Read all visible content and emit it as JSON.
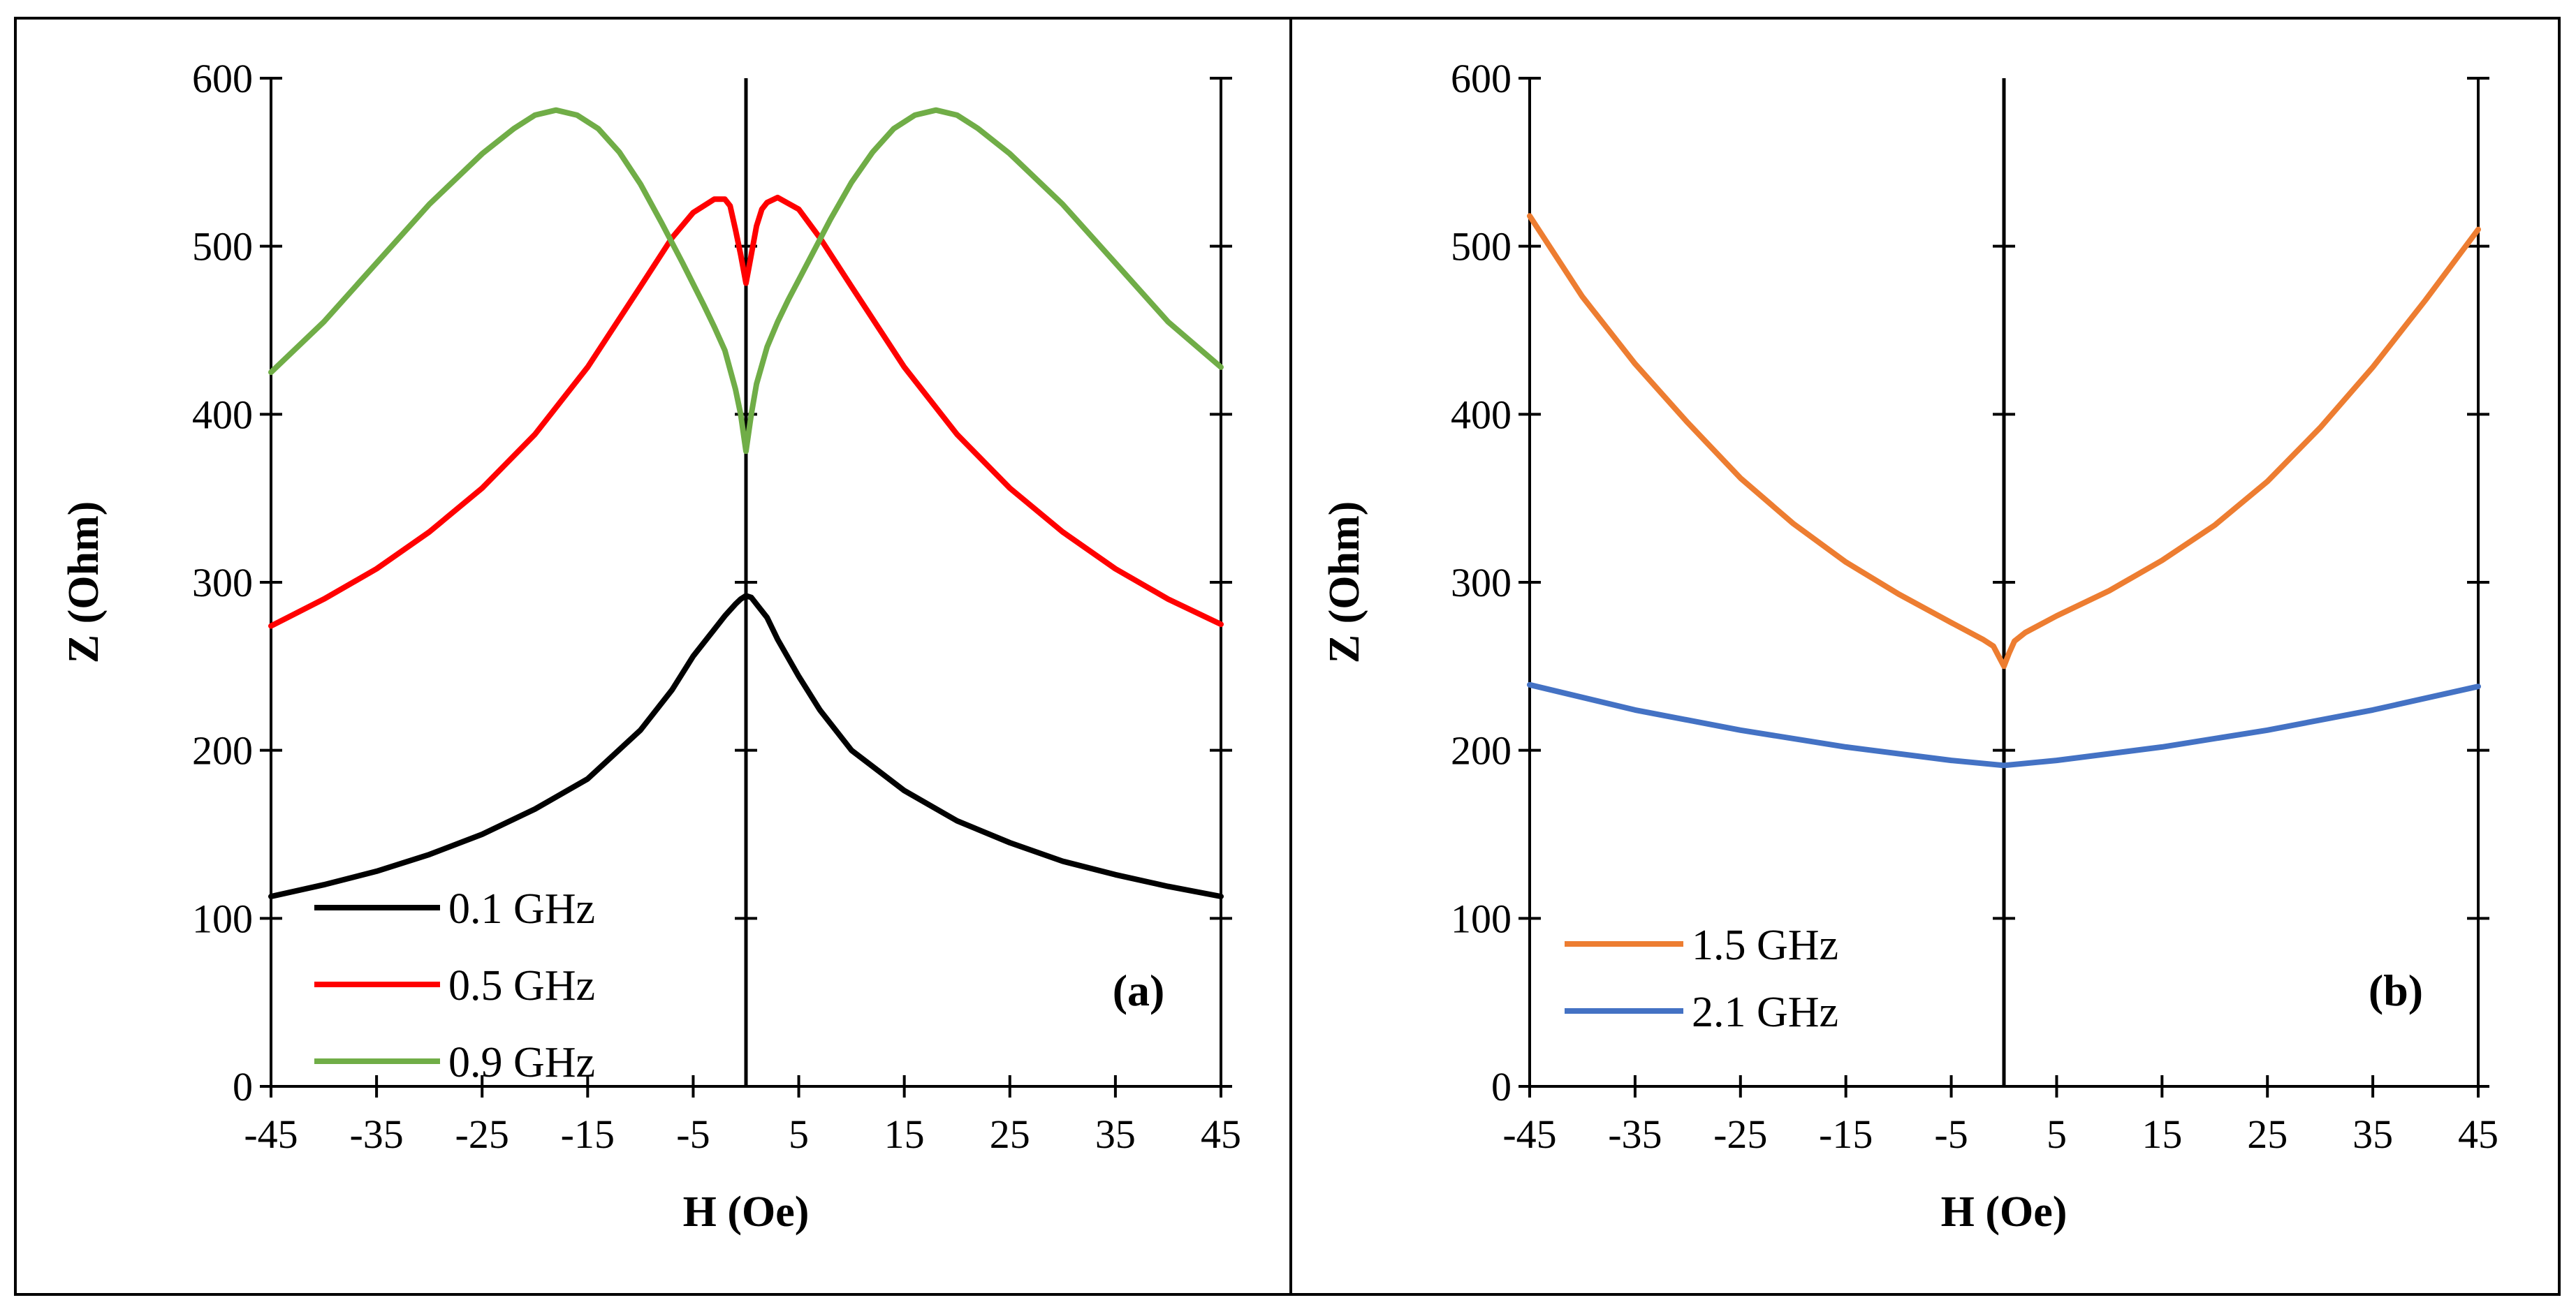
{
  "chart_data": [
    {
      "type": "line",
      "panel_label": "(a)",
      "xlabel": "H (Oe)",
      "ylabel": "Z (Ohm)",
      "xlim": [
        -45,
        45
      ],
      "ylim": [
        0,
        600
      ],
      "xticks": [
        "-45",
        "-35",
        "-25",
        "-15",
        "-5",
        "5",
        "15",
        "25",
        "35",
        "45"
      ],
      "yticks": [
        "0",
        "100",
        "200",
        "300",
        "400",
        "500",
        "600"
      ],
      "legend_position": "bottom-left",
      "series": [
        {
          "name": "0.1 GHz",
          "color": "#000000",
          "x": [
            -45,
            -40,
            -35,
            -30,
            -25,
            -20,
            -15,
            -10,
            -7,
            -5,
            -3,
            -2,
            -1,
            -0.5,
            0,
            0.5,
            1,
            2,
            3,
            5,
            7,
            10,
            15,
            20,
            25,
            30,
            35,
            40,
            45
          ],
          "y": [
            113,
            120,
            128,
            138,
            150,
            165,
            183,
            212,
            236,
            256,
            272,
            280,
            287,
            290,
            292,
            291,
            287,
            279,
            266,
            244,
            224,
            200,
            176,
            158,
            145,
            134,
            126,
            119,
            113
          ]
        },
        {
          "name": "0.5 GHz",
          "color": "#ff0000",
          "x": [
            -45,
            -40,
            -35,
            -30,
            -25,
            -20,
            -15,
            -10,
            -7,
            -5,
            -3,
            -2,
            -1.5,
            -1,
            -0.5,
            0,
            0.5,
            1,
            1.5,
            2,
            3,
            5,
            7,
            10,
            15,
            20,
            25,
            30,
            35,
            40,
            45
          ],
          "y": [
            274,
            290,
            308,
            330,
            356,
            388,
            428,
            476,
            505,
            520,
            528,
            528,
            524,
            510,
            495,
            478,
            495,
            512,
            522,
            526,
            529,
            522,
            505,
            476,
            428,
            388,
            356,
            330,
            308,
            290,
            275
          ]
        },
        {
          "name": "0.9 GHz",
          "color": "#70ad47",
          "x": [
            -45,
            -40,
            -35,
            -30,
            -25,
            -22,
            -20,
            -18,
            -16,
            -14,
            -12,
            -10,
            -8,
            -6,
            -4,
            -3,
            -2,
            -1,
            -0.5,
            0,
            0.5,
            1,
            2,
            3,
            4,
            6,
            8,
            10,
            12,
            14,
            16,
            18,
            20,
            22,
            25,
            30,
            35,
            40,
            45
          ],
          "y": [
            425,
            455,
            490,
            525,
            555,
            570,
            578,
            581,
            578,
            570,
            556,
            537,
            514,
            490,
            465,
            452,
            438,
            415,
            400,
            378,
            400,
            418,
            440,
            455,
            468,
            492,
            516,
            538,
            556,
            570,
            578,
            581,
            578,
            570,
            555,
            525,
            490,
            455,
            428
          ]
        }
      ]
    },
    {
      "type": "line",
      "panel_label": "(b)",
      "xlabel": "H (Oe)",
      "ylabel": "Z (Ohm)",
      "xlim": [
        -45,
        45
      ],
      "ylim": [
        0,
        600
      ],
      "xticks": [
        "-45",
        "-35",
        "-25",
        "-15",
        "-5",
        "5",
        "15",
        "25",
        "35",
        "45"
      ],
      "yticks": [
        "0",
        "100",
        "200",
        "300",
        "400",
        "500",
        "600"
      ],
      "legend_position": "bottom-left",
      "series": [
        {
          "name": "1.5 GHz",
          "color": "#ed7d31",
          "x": [
            -45,
            -40,
            -35,
            -30,
            -25,
            -20,
            -15,
            -10,
            -5,
            -2,
            -1,
            0,
            0.5,
            1,
            2,
            5,
            10,
            15,
            20,
            25,
            30,
            35,
            40,
            45
          ],
          "y": [
            518,
            470,
            430,
            395,
            362,
            335,
            312,
            293,
            276,
            266,
            262,
            250,
            258,
            265,
            270,
            280,
            295,
            313,
            334,
            360,
            392,
            428,
            468,
            510
          ]
        },
        {
          "name": "2.1 GHz",
          "color": "#4472c4",
          "x": [
            -45,
            -35,
            -25,
            -15,
            -5,
            0,
            5,
            15,
            25,
            35,
            45
          ],
          "y": [
            239,
            224,
            212,
            202,
            194,
            191,
            194,
            202,
            212,
            224,
            238
          ]
        }
      ]
    }
  ]
}
